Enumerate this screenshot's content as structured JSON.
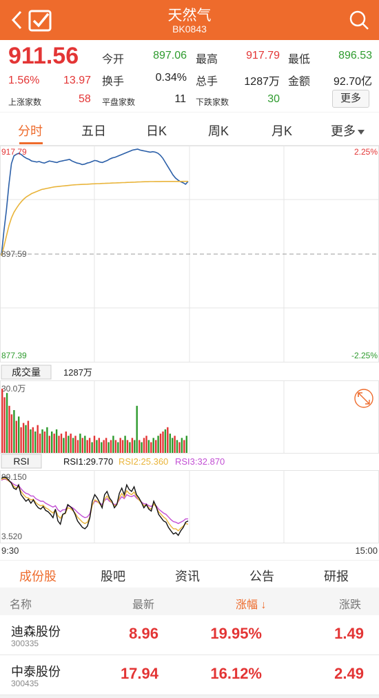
{
  "header": {
    "title": "天然气",
    "code": "BK0843"
  },
  "quote": {
    "price": "911.56",
    "pct": "1.56%",
    "change": "13.97",
    "open_label": "今开",
    "open": "897.06",
    "high_label": "最高",
    "high": "917.79",
    "low_label": "最低",
    "low": "896.53",
    "turnover_label": "换手",
    "turnover": "0.34%",
    "volume_label": "总手",
    "volume": "1287万",
    "amount_label": "金额",
    "amount": "92.70亿",
    "up_label": "上涨家数",
    "up": "58",
    "flat_label": "平盘家数",
    "flat": "11",
    "down_label": "下跌家数",
    "down": "30",
    "more": "更多"
  },
  "tabs": [
    "分时",
    "五日",
    "日K",
    "周K",
    "月K",
    "更多"
  ],
  "chart_data": {
    "type": "line",
    "price_axis": {
      "top": "917.79",
      "mid": "897.59",
      "bottom": "877.39",
      "pct_top": "2.25%",
      "pct_bottom": "-2.25%"
    },
    "time_labels": [
      "9:30",
      "15:00"
    ],
    "price_series": [
      {
        "name": "price",
        "color": "#2b5fa8",
        "values": [
          897.2,
          902,
          906,
          911,
          915,
          916.5,
          916.8,
          917,
          916.7,
          916.3,
          916,
          915.8,
          915.5,
          915.4,
          915.3,
          915.4,
          915.2,
          915.1,
          915.3,
          915.5,
          915.4,
          915.3,
          915.2,
          915.4,
          915.5,
          915.6,
          915.7,
          915.8,
          915.5,
          915.3,
          915.1,
          915,
          914.8,
          914.9,
          915.1,
          915.2,
          915.4,
          915.6,
          915.5,
          915.3,
          915.2,
          915.4,
          915.6,
          915.9,
          916.1,
          916.2,
          916.4,
          916.6,
          916.8,
          917,
          917.2,
          917.4,
          917.6,
          917.7,
          917.79,
          917.6,
          917.5,
          917.4,
          917.3,
          917.2,
          917.3,
          917.2,
          917,
          916.6,
          916,
          915.2,
          914.4,
          913.6,
          912.8,
          912.2,
          911.8,
          911.5,
          911.3,
          911,
          911.56
        ]
      },
      {
        "name": "average",
        "color": "#e9b43a",
        "values": [
          897.2,
          899,
          901,
          903,
          904.5,
          905.6,
          906.4,
          907.1,
          907.7,
          908.2,
          908.6,
          908.9,
          909.2,
          909.4,
          909.6,
          909.8,
          910,
          910.1,
          910.2,
          910.3,
          910.4,
          910.5,
          910.55,
          910.6,
          910.65,
          910.7,
          910.75,
          910.8,
          910.85,
          910.9,
          910.92,
          910.95,
          910.98,
          911,
          911.02,
          911.05,
          911.08,
          911.1,
          911.12,
          911.14,
          911.16,
          911.18,
          911.2,
          911.22,
          911.24,
          911.26,
          911.28,
          911.3,
          911.32,
          911.34,
          911.36,
          911.38,
          911.4,
          911.42,
          911.44,
          911.46,
          911.48,
          911.5,
          911.5,
          911.52,
          911.52,
          911.53,
          911.54,
          911.54,
          911.55,
          911.55,
          911.55,
          911.55,
          911.55,
          911.55,
          911.55,
          911.55,
          911.56,
          911.56,
          911.56
        ]
      }
    ],
    "volume": {
      "label": "成交量",
      "total": "1287万",
      "max_label": "30.0万",
      "values": [
        30,
        26,
        28,
        22,
        18,
        20,
        15,
        17,
        12,
        14,
        13,
        15,
        11,
        12,
        10,
        13,
        9,
        11,
        10,
        12,
        8,
        10,
        9,
        11,
        8,
        9,
        7,
        10,
        8,
        9,
        7,
        8,
        6,
        9,
        7,
        8,
        6,
        7,
        5,
        8,
        6,
        7,
        5,
        6,
        7,
        5,
        6,
        8,
        6,
        5,
        7,
        6,
        8,
        6,
        5,
        7,
        6,
        22,
        6,
        5,
        7,
        8,
        6,
        5,
        7,
        6,
        8,
        9,
        10,
        11,
        12,
        9,
        7,
        8,
        6,
        5,
        7,
        6,
        8
      ],
      "up": [
        1,
        1,
        0,
        1,
        1,
        0,
        1,
        0,
        1,
        1,
        0,
        1,
        0,
        1,
        0,
        1,
        1,
        0,
        1,
        0,
        1,
        0,
        1,
        0,
        1,
        1,
        0,
        1,
        0,
        1,
        0,
        1,
        1,
        0,
        1,
        0,
        1,
        1,
        0,
        1,
        0,
        1,
        0,
        1,
        1,
        0,
        1,
        0,
        1,
        0,
        1,
        1,
        0,
        1,
        0,
        1,
        0,
        0,
        1,
        0,
        1,
        1,
        0,
        1,
        0,
        1,
        0,
        1,
        1,
        0,
        1,
        0,
        0,
        1,
        0,
        1,
        0,
        1,
        0
      ]
    },
    "rsi": {
      "label": "RSI",
      "top": "99.150",
      "bottom": "3.520",
      "rsi1_label": "RSI1:29.770",
      "rsi2_label": "RSI2:25.360",
      "rsi3_label": "RSI3:32.870",
      "rsi1": [
        95,
        97,
        96,
        92,
        88,
        80,
        78,
        85,
        70,
        65,
        60,
        63,
        57,
        62,
        55,
        50,
        48,
        52,
        46,
        44,
        40,
        35,
        48,
        30,
        25,
        40,
        42,
        55,
        52,
        48,
        40,
        30,
        25,
        20,
        18,
        22,
        35,
        60,
        70,
        65,
        58,
        50,
        70,
        75,
        65,
        60,
        50,
        55,
        72,
        80,
        70,
        85,
        78,
        75,
        82,
        70,
        65,
        58,
        50,
        55,
        48,
        45,
        60,
        52,
        40,
        35,
        30,
        28,
        20,
        15,
        10,
        12,
        8,
        15,
        20,
        28,
        30
      ],
      "rsi2": [
        93,
        95,
        94,
        91,
        88,
        83,
        80,
        82,
        75,
        70,
        66,
        65,
        62,
        63,
        58,
        55,
        53,
        54,
        50,
        48,
        45,
        42,
        47,
        38,
        34,
        40,
        41,
        50,
        49,
        46,
        42,
        36,
        32,
        28,
        26,
        28,
        36,
        54,
        62,
        60,
        56,
        52,
        63,
        68,
        62,
        58,
        53,
        55,
        65,
        72,
        66,
        76,
        72,
        70,
        74,
        67,
        62,
        58,
        53,
        55,
        50,
        48,
        56,
        51,
        44,
        40,
        36,
        33,
        27,
        22,
        18,
        18,
        15,
        19,
        22,
        26,
        25
      ],
      "rsi3": [
        92,
        94,
        93,
        91,
        89,
        86,
        84,
        84,
        79,
        75,
        72,
        71,
        68,
        68,
        64,
        62,
        60,
        60,
        57,
        55,
        53,
        51,
        53,
        47,
        44,
        47,
        47,
        53,
        52,
        50,
        47,
        43,
        40,
        37,
        35,
        36,
        41,
        54,
        60,
        59,
        57,
        55,
        61,
        64,
        60,
        58,
        55,
        56,
        62,
        67,
        64,
        70,
        68,
        67,
        69,
        65,
        62,
        59,
        56,
        56,
        53,
        52,
        56,
        53,
        48,
        45,
        42,
        40,
        36,
        32,
        29,
        28,
        26,
        28,
        30,
        33,
        33
      ],
      "colors": {
        "rsi1": "#111111",
        "rsi2": "#e9b43a",
        "rsi3": "#c24fd4"
      }
    },
    "colors": {
      "up": "#e33535",
      "down": "#2e9b2e",
      "grid": "#e4e4e4"
    }
  },
  "bottom_tabs": [
    "成份股",
    "股吧",
    "资讯",
    "公告",
    "研报"
  ],
  "table": {
    "headers": {
      "name": "名称",
      "latest": "最新",
      "pct": "涨幅 ↓",
      "change": "涨跌"
    },
    "rows": [
      {
        "name": "迪森股份",
        "code": "300335",
        "latest": "8.96",
        "pct": "19.95%",
        "change": "1.49"
      },
      {
        "name": "中泰股份",
        "code": "300435",
        "latest": "17.94",
        "pct": "16.12%",
        "change": "2.49"
      }
    ]
  }
}
